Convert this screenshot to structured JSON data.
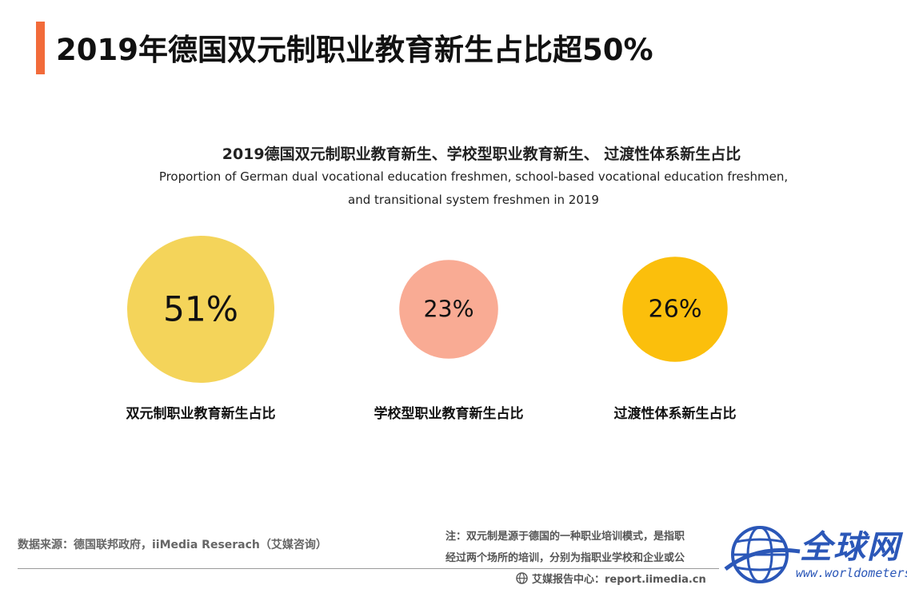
{
  "page": {
    "title": "2019年德国双元制职业教育新生占比超50%",
    "accent_color": "#f26b3a"
  },
  "chart_data": {
    "type": "bubble",
    "title": "2019德国双元制职业教育新生、学校型职业教育新生、 过渡性体系新生占比",
    "subtitle_lines": [
      "Proportion of German dual vocational education freshmen, school-based vocational education freshmen,",
      "and transitional system freshmen in 2019"
    ],
    "categories": [
      "双元制职业教育新生占比",
      "学校型职业教育新生占比",
      "过渡性体系新生占比"
    ],
    "values": [
      51,
      23,
      26
    ],
    "value_labels": [
      "51%",
      "23%",
      "26%"
    ],
    "colors": [
      "#f4d45a",
      "#f9ab94",
      "#fbbf0c"
    ]
  },
  "footer": {
    "source": "数据来源：德国联邦政府，iiMedia Reserach（艾媒咨询）",
    "note_line1": "注：双元制是源于德国的一种职业培训模式，是指职",
    "note_line2": "经过两个场所的培训，分别为指职业学校和企业或公",
    "center": "艾媒报告中心：report.iimedia.cn"
  },
  "watermark": {
    "text": "全球网",
    "url": "www.worldometers.cn"
  }
}
